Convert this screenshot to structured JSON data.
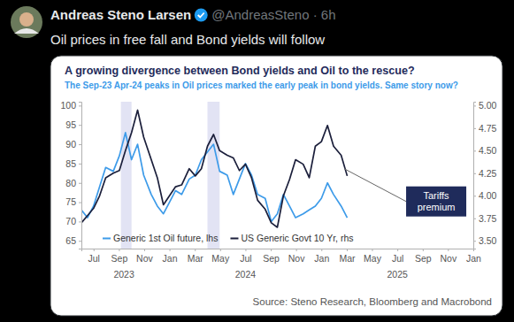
{
  "tweet": {
    "author": "Andreas Steno Larsen",
    "meta": "@AndreasSteno · 6h",
    "text": "Oil prices in free fall and Bond yields will follow"
  },
  "chart_data": {
    "type": "line",
    "title": "A growing divergence between Bond yields and Oil to the rescue?",
    "subtitle": "The Sep-23 Apr-24 peaks in Oil prices marked the early peak in bond yields. Same story now?",
    "source": "Source: Steno Research, Bloomberg and Macrobond",
    "x": [
      2023.42,
      2023.46,
      2023.5,
      2023.54,
      2023.58,
      2023.63,
      2023.67,
      2023.71,
      2023.75,
      2023.79,
      2023.83,
      2023.88,
      2023.92,
      2023.96,
      2024.0,
      2024.04,
      2024.08,
      2024.13,
      2024.17,
      2024.21,
      2024.25,
      2024.29,
      2024.33,
      2024.38,
      2024.42,
      2024.46,
      2024.5,
      2024.54,
      2024.58,
      2024.63,
      2024.67,
      2024.71,
      2024.75,
      2024.79,
      2024.83,
      2024.88,
      2024.92,
      2024.96,
      2025.0,
      2025.04,
      2025.08,
      2025.13,
      2025.17
    ],
    "series": [
      {
        "name": "Generic 1st Oil future, lhs",
        "color": "#3d9be9",
        "axis": "y",
        "values": [
          73,
          71,
          74,
          79,
          84,
          83,
          87,
          93,
          86,
          90,
          82,
          77,
          74,
          72,
          75,
          78,
          77,
          81,
          82,
          86,
          88,
          90,
          83,
          82,
          77,
          81,
          85,
          82,
          77,
          76,
          70,
          72,
          77,
          74,
          71,
          72,
          73,
          74,
          76,
          80,
          77,
          74,
          71
        ]
      },
      {
        "name": "US Generic Govt 10 Yr, rhs",
        "color": "#1b1f3b",
        "axis": "y2",
        "values": [
          3.7,
          3.78,
          3.86,
          4.0,
          4.2,
          4.25,
          4.28,
          4.5,
          4.7,
          4.95,
          4.65,
          4.4,
          4.2,
          3.9,
          4.0,
          4.1,
          4.12,
          4.3,
          4.22,
          4.3,
          4.55,
          4.68,
          4.5,
          4.45,
          4.42,
          4.28,
          4.35,
          4.2,
          3.95,
          3.85,
          3.7,
          3.65,
          4.0,
          4.18,
          4.4,
          4.35,
          4.2,
          4.55,
          4.6,
          4.78,
          4.55,
          4.45,
          4.22
        ]
      }
    ],
    "xlim": [
      2023.42,
      2026
    ],
    "xticks": [
      {
        "value": 2023.5,
        "label": "Jul"
      },
      {
        "value": 2023.667,
        "label": "Sep"
      },
      {
        "value": 2023.833,
        "label": "Nov"
      },
      {
        "value": 2024,
        "label": "Jan"
      },
      {
        "value": 2024.167,
        "label": "Mar"
      },
      {
        "value": 2024.333,
        "label": "May"
      },
      {
        "value": 2024.5,
        "label": "Jul"
      },
      {
        "value": 2024.667,
        "label": "Sep"
      },
      {
        "value": 2024.833,
        "label": "Nov"
      },
      {
        "value": 2025,
        "label": "Jan"
      },
      {
        "value": 2025.167,
        "label": "Mar"
      },
      {
        "value": 2025.333,
        "label": "May"
      },
      {
        "value": 2025.5,
        "label": "Jul"
      },
      {
        "value": 2025.667,
        "label": "Sep"
      },
      {
        "value": 2025.833,
        "label": "Nov"
      },
      {
        "value": 2026,
        "label": "Jan"
      }
    ],
    "x_group_labels": [
      {
        "value": 2023.7,
        "label": "2023"
      },
      {
        "value": 2024.5,
        "label": "2024"
      },
      {
        "value": 2025.5,
        "label": "2025"
      }
    ],
    "ylim": [
      63,
      101
    ],
    "yticks": [
      65,
      70,
      75,
      80,
      85,
      90,
      95,
      100
    ],
    "y2lim": [
      3.414,
      5.043
    ],
    "y2ticks": [
      {
        "value": 3.5,
        "label": "3.50"
      },
      {
        "value": 3.75,
        "label": "3.75"
      },
      {
        "value": 4,
        "label": "4.00"
      },
      {
        "value": 4.25,
        "label": "4.25"
      },
      {
        "value": 4.5,
        "label": "4.50"
      },
      {
        "value": 4.75,
        "label": "4.75"
      },
      {
        "value": 5,
        "label": "5.00"
      }
    ],
    "shaded_periods": [
      {
        "start": 2023.68,
        "end": 2023.75
      },
      {
        "start": 2024.25,
        "end": 2024.33
      }
    ],
    "annotation": {
      "text": "Tariffs premium",
      "x": 2025.15,
      "y": 4.3,
      "axis": "y2"
    },
    "grid": false,
    "legend": "bottom-left"
  }
}
